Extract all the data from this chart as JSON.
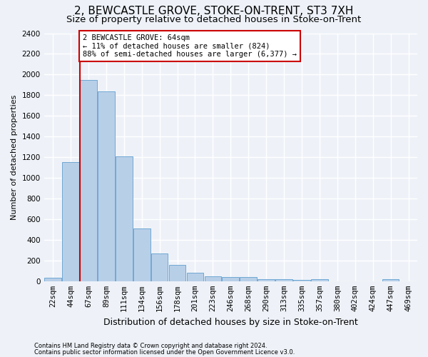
{
  "title": "2, BEWCASTLE GROVE, STOKE-ON-TRENT, ST3 7XH",
  "subtitle": "Size of property relative to detached houses in Stoke-on-Trent",
  "xlabel": "Distribution of detached houses by size in Stoke-on-Trent",
  "ylabel": "Number of detached properties",
  "bar_labels": [
    "22sqm",
    "44sqm",
    "67sqm",
    "89sqm",
    "111sqm",
    "134sqm",
    "156sqm",
    "178sqm",
    "201sqm",
    "223sqm",
    "246sqm",
    "268sqm",
    "290sqm",
    "313sqm",
    "335sqm",
    "357sqm",
    "380sqm",
    "402sqm",
    "424sqm",
    "447sqm",
    "469sqm"
  ],
  "bar_values": [
    30,
    1150,
    1950,
    1840,
    1210,
    510,
    265,
    155,
    80,
    50,
    42,
    40,
    20,
    20,
    10,
    20,
    0,
    0,
    0,
    20,
    0
  ],
  "bar_color": "#b8cfe8",
  "bar_edge_color": "#6fa8d4",
  "ylim": [
    0,
    2400
  ],
  "yticks": [
    0,
    200,
    400,
    600,
    800,
    1000,
    1200,
    1400,
    1600,
    1800,
    2000,
    2200,
    2400
  ],
  "property_bar_index": 2,
  "red_line_color": "#cc0000",
  "annotation_text": "2 BEWCASTLE GROVE: 64sqm\n← 11% of detached houses are smaller (824)\n88% of semi-detached houses are larger (6,377) →",
  "annotation_box_color": "#cc0000",
  "footer_line1": "Contains HM Land Registry data © Crown copyright and database right 2024.",
  "footer_line2": "Contains public sector information licensed under the Open Government Licence v3.0.",
  "background_color": "#eef2f8",
  "plot_background": "#eef2f8",
  "grid_color": "#ffffff",
  "title_fontsize": 11,
  "subtitle_fontsize": 9.5,
  "ylabel_fontsize": 8,
  "xlabel_fontsize": 9,
  "tick_fontsize": 7.5,
  "annotation_fontsize": 7.5,
  "footer_fontsize": 6
}
